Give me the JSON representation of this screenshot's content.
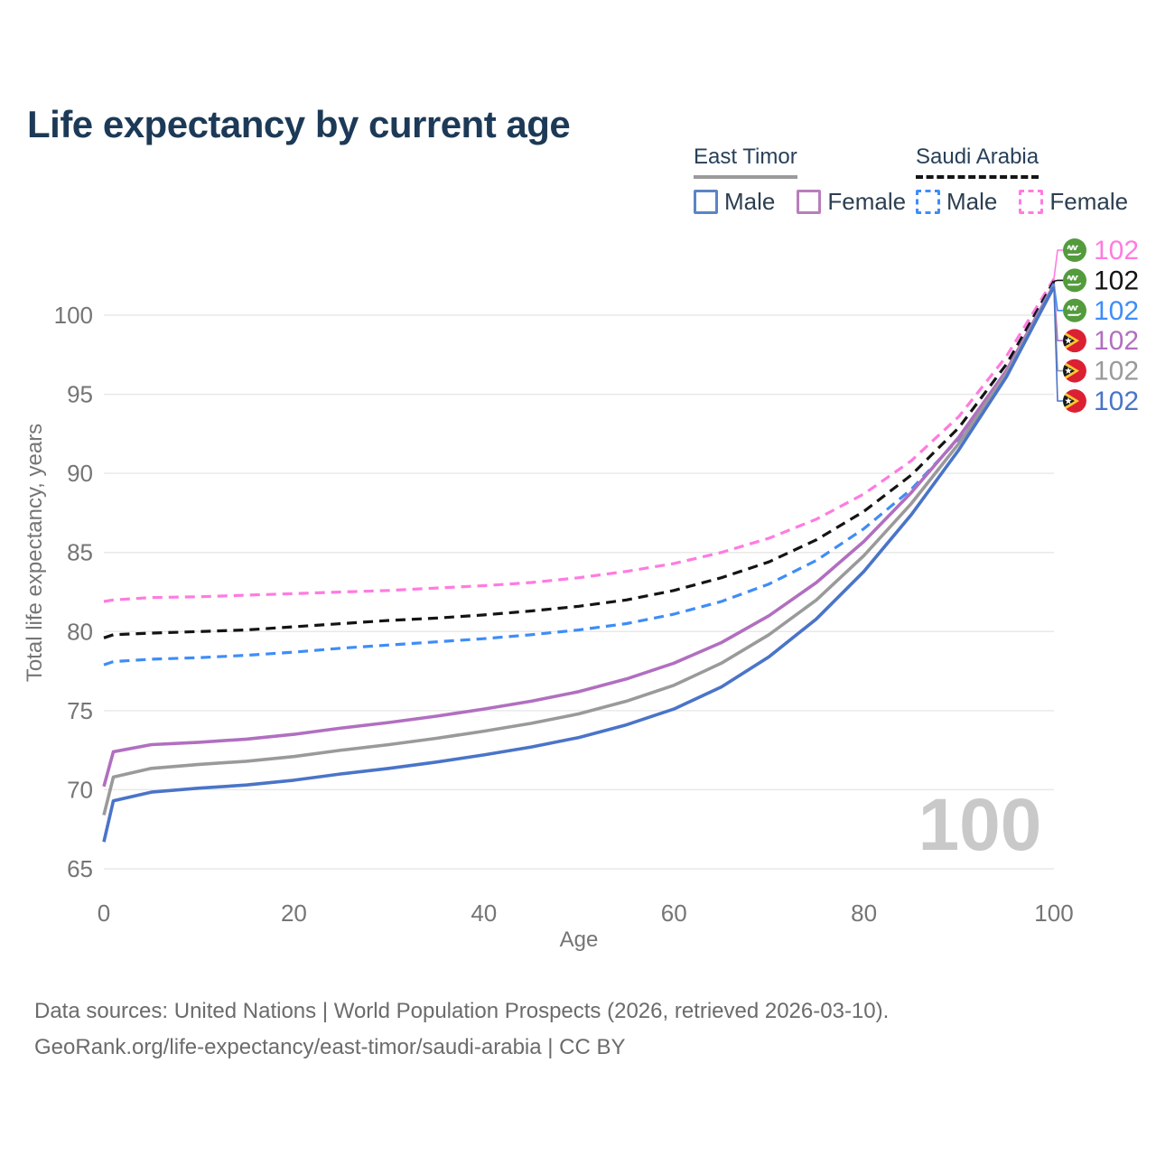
{
  "title": "Life expectancy by current age",
  "legend": {
    "groups": [
      {
        "country": "East Timor",
        "line_style": "solid",
        "underline_color": "#9a9a9a",
        "items": [
          {
            "label": "Male",
            "color": "#5b84c6"
          },
          {
            "label": "Female",
            "color": "#b87eba"
          }
        ]
      },
      {
        "country": "Saudi Arabia",
        "line_style": "dashed",
        "underline_color": "#141414",
        "items": [
          {
            "label": "Male",
            "color": "#3e8df7"
          },
          {
            "label": "Female",
            "color": "#ff7be0"
          }
        ]
      }
    ]
  },
  "chart_data": {
    "type": "line",
    "title": "Life expectancy by current age",
    "xlabel": "Age",
    "ylabel": "Total life expectancy, years",
    "xlim": [
      0,
      100
    ],
    "ylim": [
      65,
      103.5
    ],
    "xticks": [
      0,
      20,
      40,
      60,
      80,
      100
    ],
    "yticks": [
      65,
      70,
      75,
      80,
      85,
      90,
      95,
      100
    ],
    "grid": "horizontal",
    "watermark": "100",
    "x": [
      0,
      1,
      5,
      10,
      15,
      20,
      25,
      30,
      35,
      40,
      45,
      50,
      55,
      60,
      65,
      70,
      75,
      80,
      85,
      90,
      95,
      100
    ],
    "series": [
      {
        "id": "saudi-arabia-female",
        "country": "Saudi Arabia",
        "sex": "Female",
        "style": "dashed",
        "color": "#ff7be0",
        "flag": "saudi-arabia",
        "end_label": "102",
        "values": [
          81.9,
          82.0,
          82.15,
          82.2,
          82.3,
          82.4,
          82.5,
          82.6,
          82.75,
          82.9,
          83.1,
          83.4,
          83.8,
          84.3,
          85.0,
          85.9,
          87.1,
          88.7,
          90.8,
          93.6,
          97.4,
          102.3
        ]
      },
      {
        "id": "saudi-arabia-both",
        "country": "Saudi Arabia",
        "sex": "Both sexes",
        "style": "dashed",
        "color": "#141414",
        "flag": "saudi-arabia",
        "end_label": "102",
        "values": [
          79.6,
          79.8,
          79.9,
          80.0,
          80.1,
          80.3,
          80.5,
          80.7,
          80.85,
          81.05,
          81.3,
          81.6,
          82.0,
          82.6,
          83.4,
          84.4,
          85.8,
          87.6,
          89.9,
          92.9,
          96.9,
          102.15
        ]
      },
      {
        "id": "saudi-arabia-male",
        "country": "Saudi Arabia",
        "sex": "Male",
        "style": "dashed",
        "color": "#3e8df7",
        "flag": "saudi-arabia",
        "end_label": "102",
        "values": [
          77.9,
          78.1,
          78.25,
          78.35,
          78.5,
          78.7,
          78.95,
          79.15,
          79.35,
          79.55,
          79.8,
          80.1,
          80.5,
          81.1,
          81.9,
          83.0,
          84.5,
          86.5,
          89.0,
          92.2,
          96.4,
          102.0
        ]
      },
      {
        "id": "east-timor-female",
        "country": "East Timor",
        "sex": "Female",
        "style": "solid",
        "color": "#b16fc0",
        "flag": "east-timor",
        "end_label": "102",
        "values": [
          70.2,
          72.4,
          72.85,
          73.0,
          73.2,
          73.5,
          73.9,
          74.25,
          74.65,
          75.1,
          75.6,
          76.2,
          77.0,
          78.0,
          79.3,
          81.0,
          83.1,
          85.7,
          88.8,
          92.3,
          96.5,
          101.9
        ]
      },
      {
        "id": "east-timor-both",
        "country": "East Timor",
        "sex": "Both sexes",
        "style": "solid",
        "color": "#9a9a9a",
        "flag": "east-timor",
        "end_label": "102",
        "values": [
          68.4,
          70.8,
          71.35,
          71.6,
          71.8,
          72.1,
          72.5,
          72.85,
          73.25,
          73.7,
          74.2,
          74.8,
          75.6,
          76.6,
          78.0,
          79.8,
          82.0,
          84.8,
          88.1,
          91.9,
          96.3,
          101.85
        ]
      },
      {
        "id": "east-timor-male",
        "country": "East Timor",
        "sex": "Male",
        "style": "solid",
        "color": "#4a74c8",
        "flag": "east-timor",
        "end_label": "102",
        "values": [
          66.7,
          69.3,
          69.85,
          70.1,
          70.3,
          70.6,
          71.0,
          71.35,
          71.75,
          72.2,
          72.7,
          73.3,
          74.1,
          75.1,
          76.5,
          78.4,
          80.8,
          83.8,
          87.4,
          91.5,
          96.1,
          101.8
        ]
      }
    ]
  },
  "footer": {
    "line1": "Data sources: United Nations | World Population Prospects (2026, retrieved 2026-03-10).",
    "line2": "GeoRank.org/life-expectancy/east-timor/saudi-arabia | CC BY"
  }
}
